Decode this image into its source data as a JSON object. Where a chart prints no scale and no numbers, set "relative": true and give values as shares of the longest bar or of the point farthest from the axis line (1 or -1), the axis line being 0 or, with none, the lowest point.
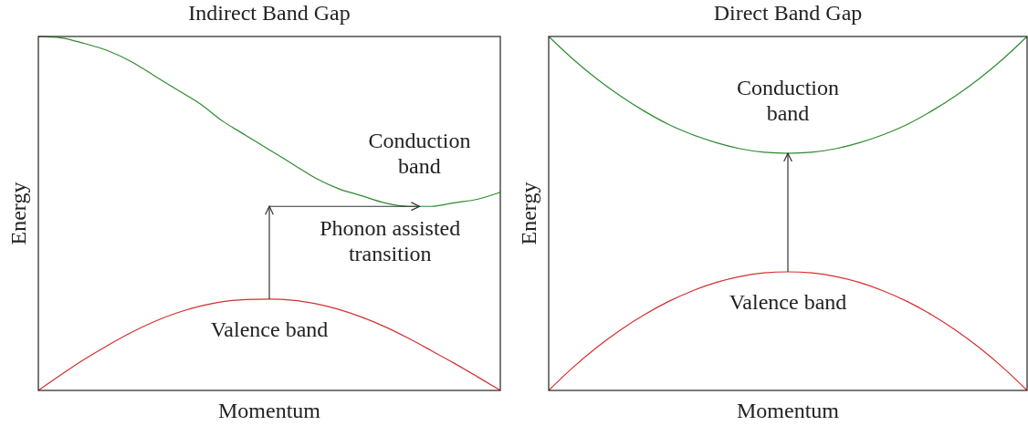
{
  "chart_data": [
    {
      "type": "line",
      "title": "Indirect Band Gap",
      "xlabel": "Momentum",
      "ylabel": "Energy",
      "relative": true,
      "categories": [
        null,
        null,
        null,
        null,
        null,
        null,
        null,
        null,
        null,
        null,
        null,
        null,
        null,
        null,
        null,
        null,
        null,
        null,
        null,
        null,
        null
      ],
      "series": [
        {
          "name": "Conduction band",
          "color": "#2e8b2e",
          "values": [
            1.0,
            0.996,
            0.98,
            0.96,
            0.93,
            0.89,
            0.85,
            0.81,
            0.76,
            0.72,
            0.68,
            0.64,
            0.6,
            0.57,
            0.55,
            0.53,
            0.52,
            0.52,
            0.53,
            0.54,
            0.56
          ]
        },
        {
          "name": "Valence band",
          "color": "#d62f2f",
          "values": [
            0,
            0.045,
            0.088,
            0.127,
            0.163,
            0.194,
            0.219,
            0.238,
            0.251,
            0.257,
            0.258,
            0.255,
            0.245,
            0.229,
            0.207,
            0.18,
            0.148,
            0.113,
            0.077,
            0.039,
            0
          ]
        }
      ],
      "annotations": [
        "Phonon assisted transition"
      ]
    },
    {
      "type": "line",
      "title": "Direct Band Gap",
      "xlabel": "Momentum",
      "ylabel": "Energy",
      "relative": true,
      "categories": [
        null,
        null,
        null,
        null,
        null,
        null,
        null,
        null,
        null,
        null,
        null,
        null,
        null,
        null,
        null,
        null,
        null,
        null,
        null,
        null,
        null
      ],
      "series": [
        {
          "name": "Conduction band",
          "color": "#2e8b2e",
          "values": [
            1.0,
            0.937,
            0.881,
            0.832,
            0.789,
            0.752,
            0.723,
            0.7,
            0.683,
            0.673,
            0.67,
            0.673,
            0.683,
            0.7,
            0.723,
            0.752,
            0.789,
            0.832,
            0.881,
            0.937,
            1.0
          ]
        },
        {
          "name": "Valence band",
          "color": "#d62f2f",
          "values": [
            0,
            0.064,
            0.121,
            0.171,
            0.214,
            0.251,
            0.281,
            0.305,
            0.322,
            0.332,
            0.335,
            0.332,
            0.322,
            0.305,
            0.281,
            0.251,
            0.214,
            0.171,
            0.121,
            0.064,
            0
          ]
        }
      ]
    }
  ]
}
